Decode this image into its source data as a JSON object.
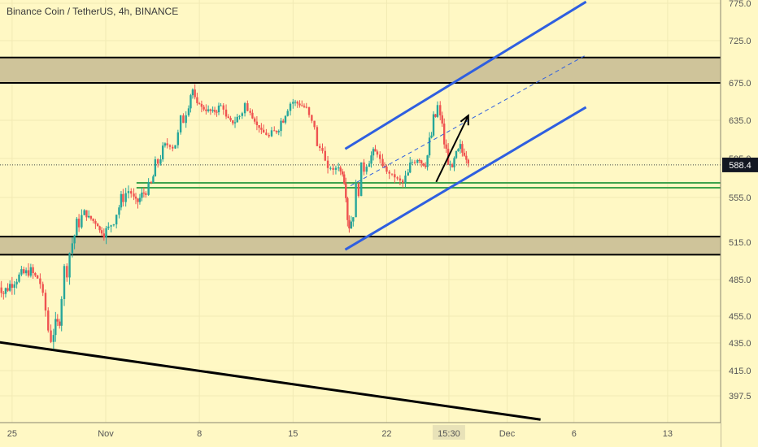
{
  "chart_data": {
    "type": "candlestick",
    "title": "Binance Coin / TetherUS, 4h, BINANCE",
    "symbol": "BNBUSDT",
    "exchange": "BINANCE",
    "interval": "4h",
    "current_price_label": "588.4",
    "current_price": 588.4,
    "y_ticks": [
      775.0,
      725.0,
      675.0,
      635.0,
      595.0,
      555.0,
      515.0,
      485.0,
      455.0,
      435.0,
      415.0,
      397.5
    ],
    "y_tick_labels": [
      "775.0",
      "725.0",
      "675.0",
      "635.0",
      "595.0",
      "555.0",
      "515.0",
      "485.0",
      "455.0",
      "435.0",
      "415.0",
      "397.5"
    ],
    "x_ticks": [
      {
        "label": "25",
        "day": -7
      },
      {
        "label": "Nov",
        "day": 0
      },
      {
        "label": "8",
        "day": 7
      },
      {
        "label": "15",
        "day": 14
      },
      {
        "label": "22",
        "day": 21
      },
      {
        "label": "15:30",
        "day": 25.65
      },
      {
        "label": "Dec",
        "day": 30
      },
      {
        "label": "6",
        "day": 35
      },
      {
        "label": "13",
        "day": 42
      }
    ],
    "x_tick_highlight": "15:30",
    "zones": [
      {
        "name": "resistance",
        "low": 675,
        "high": 705,
        "color": "#cfc49a",
        "border": "#000000"
      },
      {
        "name": "support",
        "low": 505,
        "high": 520,
        "color": "#cfc49a",
        "border": "#000000"
      }
    ],
    "green_lines": [
      570,
      565
    ],
    "channel": {
      "color": "#2f5fe0",
      "upper": [
        [
          17.9,
          605
        ],
        [
          35.9,
          777
        ]
      ],
      "lower": [
        [
          17.9,
          509
        ],
        [
          35.9,
          649
        ]
      ],
      "mid_dashed": [
        [
          18.3,
          567
        ],
        [
          35.9,
          708
        ]
      ]
    },
    "arrow": {
      "from": [
        24.7,
        571
      ],
      "to": [
        27.1,
        640
      ],
      "color": "#000000"
    },
    "trendline": {
      "from": [
        -8.3,
        436
      ],
      "to": [
        32.5,
        381
      ],
      "color": "#000000"
    },
    "candles_close_path": [
      [
        -8.3,
        488
      ],
      [
        -7.8,
        472
      ],
      [
        -7.0,
        483
      ],
      [
        -6.3,
        489
      ],
      [
        -5.6,
        492
      ],
      [
        -5.1,
        486
      ],
      [
        -4.7,
        476
      ],
      [
        -4.3,
        443
      ],
      [
        -4.1,
        431
      ],
      [
        -3.9,
        452
      ],
      [
        -3.6,
        450
      ],
      [
        -3.3,
        479
      ],
      [
        -2.9,
        500
      ],
      [
        -2.5,
        515
      ],
      [
        -2.0,
        535
      ],
      [
        -1.6,
        540
      ],
      [
        -1.1,
        536
      ],
      [
        -0.6,
        530
      ],
      [
        -0.3,
        522
      ],
      [
        0.2,
        527
      ],
      [
        0.6,
        538
      ],
      [
        1.0,
        547
      ],
      [
        1.3,
        557
      ],
      [
        1.7,
        562
      ],
      [
        2.1,
        556
      ],
      [
        2.4,
        551
      ],
      [
        2.7,
        557
      ],
      [
        3.0,
        563
      ],
      [
        3.4,
        568
      ],
      [
        3.7,
        584
      ],
      [
        4.1,
        600
      ],
      [
        4.6,
        610
      ],
      [
        5.0,
        606
      ],
      [
        5.4,
        618
      ],
      [
        5.8,
        640
      ],
      [
        6.2,
        660
      ],
      [
        6.5,
        668
      ],
      [
        7.0,
        650
      ],
      [
        7.5,
        646
      ],
      [
        8.0,
        644
      ],
      [
        8.6,
        650
      ],
      [
        9.0,
        640
      ],
      [
        9.5,
        632
      ],
      [
        10.0,
        640
      ],
      [
        10.4,
        652
      ],
      [
        10.8,
        640
      ],
      [
        11.3,
        630
      ],
      [
        11.8,
        622
      ],
      [
        12.2,
        618
      ],
      [
        12.6,
        622
      ],
      [
        13.1,
        634
      ],
      [
        13.6,
        652
      ],
      [
        14.0,
        655
      ],
      [
        14.5,
        652
      ],
      [
        15.0,
        648
      ],
      [
        15.4,
        636
      ],
      [
        15.8,
        612
      ],
      [
        16.2,
        600
      ],
      [
        16.6,
        588
      ],
      [
        17.0,
        583
      ],
      [
        17.4,
        590
      ],
      [
        17.7,
        575
      ],
      [
        17.95,
        540
      ],
      [
        18.2,
        525
      ],
      [
        18.5,
        548
      ],
      [
        18.9,
        570
      ],
      [
        19.3,
        588
      ],
      [
        19.7,
        595
      ],
      [
        20.0,
        600
      ],
      [
        20.3,
        602
      ],
      [
        20.7,
        590
      ],
      [
        21.0,
        582
      ],
      [
        21.4,
        578
      ],
      [
        21.8,
        574
      ],
      [
        22.2,
        570
      ],
      [
        22.6,
        578
      ],
      [
        22.9,
        592
      ],
      [
        23.3,
        596
      ],
      [
        23.6,
        590
      ],
      [
        23.9,
        588
      ],
      [
        24.2,
        608
      ],
      [
        24.5,
        630
      ],
      [
        24.8,
        648
      ],
      [
        25.0,
        642
      ],
      [
        25.3,
        615
      ],
      [
        25.6,
        592
      ],
      [
        25.9,
        586
      ],
      [
        26.2,
        596
      ],
      [
        26.5,
        605
      ],
      [
        26.8,
        597
      ],
      [
        27.1,
        588.4
      ]
    ]
  }
}
